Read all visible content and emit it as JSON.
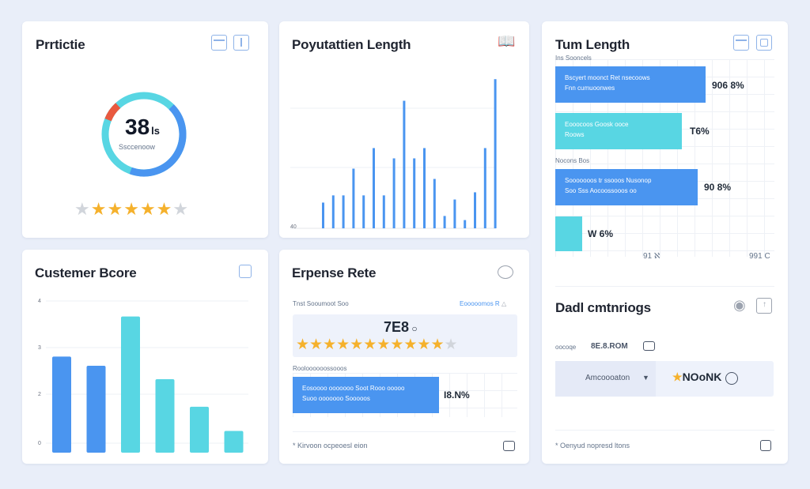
{
  "card1": {
    "title": "Prrtictie",
    "donut_value": "38",
    "donut_unit": "ls",
    "donut_caption": "Ssccenoow",
    "rating": 5,
    "stars_total": 7,
    "ring_colors": [
      "#4a95f0",
      "#58d6e3",
      "#e9593f"
    ]
  },
  "card2": {
    "title": "Poyutattien Length",
    "axis_label": "40",
    "chart_data": {
      "type": "bar",
      "values": [
        25,
        32,
        32,
        58,
        32,
        78,
        32,
        68,
        124,
        68,
        78,
        48,
        12,
        28,
        8,
        35,
        78,
        145
      ],
      "ylim": [
        0,
        150
      ]
    }
  },
  "card3": {
    "title": "Tum Length",
    "section1_label": "Ins Sooncels",
    "section2_label": "Nocons Bos",
    "bars": [
      {
        "line1": "Bscyert moonct Ret nsecoows",
        "line2": "Fnn cumuoonwes",
        "value": "906 8%",
        "percent": 90,
        "color": "#4a95f0"
      },
      {
        "line1": "Eooocoos Goosk ooce",
        "line2": "Roows",
        "value": "T6%",
        "percent": 75,
        "color": "#58d6e3"
      },
      {
        "line1": "Sooooooos tr ssooos Nusonop",
        "line2": "Soo Sss Aocoossooos oo",
        "value": "90 8%",
        "percent": 84,
        "color": "#4a95f0"
      },
      {
        "line1": "",
        "line2": "",
        "value": "W 6%",
        "percent": 16,
        "color": "#58d6e3"
      }
    ],
    "axis_left": "91 ℵ",
    "axis_right": "991 C"
  },
  "card4": {
    "title": "Custemer Bcore",
    "y_ticks": [
      "4",
      "3",
      "2",
      "0"
    ],
    "chart_data": {
      "type": "bar",
      "values": [
        115,
        104,
        163,
        88,
        55,
        26
      ],
      "colors": [
        "#4a95f0",
        "#4a95f0",
        "#58d6e3",
        "#58d6e3",
        "#58d6e3",
        "#58d6e3"
      ],
      "ylim": [
        0,
        175
      ]
    }
  },
  "card5": {
    "title": "Erpense Rete",
    "subtitle_left": "Tnst Sooumoot Soo",
    "subtitle_right": "Eooooomos R",
    "rating_value": "7E8",
    "rating_stars": 12,
    "rating_filled": 11,
    "section_label": "Rooloooooossooos",
    "bar_line1": "Eosoooo ooooooo Soot Rooo ooooo",
    "bar_line2": "Suoo ooooooo Sooooos",
    "bar_value": "I8.N%",
    "bar_percent": 64,
    "footer": "* Kirvoon ocpeoesl eion"
  },
  "card6": {
    "title": "Dadl cmtnriogs",
    "row_label": "oocoqe",
    "row_value": "8E.8.ROM",
    "select_value": "Amcoooaton",
    "action_value": "NOoNK",
    "footer": "* Oenyud nopresd ltons"
  }
}
